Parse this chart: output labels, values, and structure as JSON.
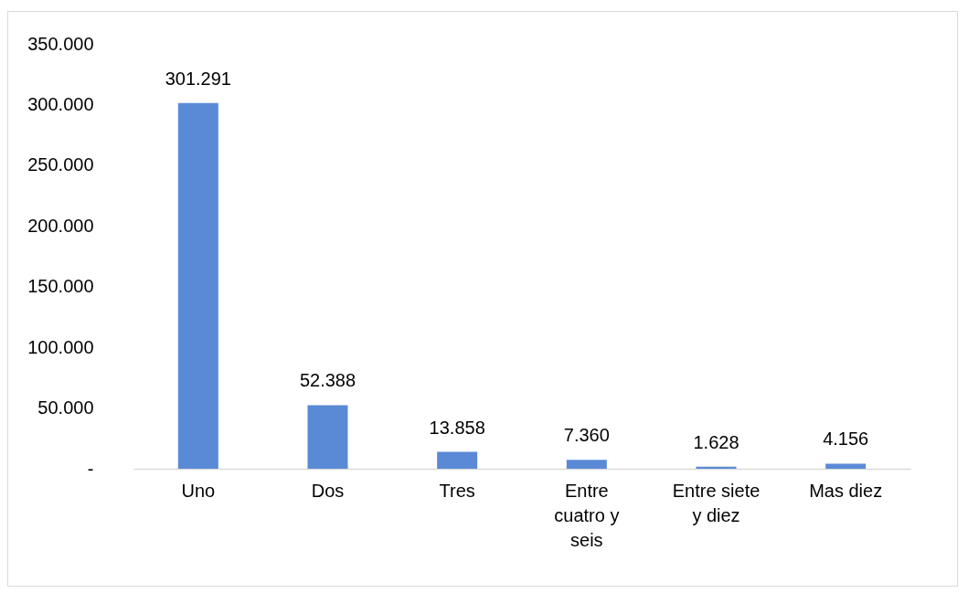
{
  "chart_data": {
    "type": "bar",
    "categories": [
      "Uno",
      "Dos",
      "Tres",
      "Entre cuatro y seis",
      "Entre siete y diez",
      "Mas diez"
    ],
    "values": [
      301291,
      52388,
      13858,
      7360,
      1628,
      4156
    ],
    "value_labels": [
      "301.291",
      "52.388",
      "13.858",
      "7.360",
      "1.628",
      "4.156"
    ],
    "color": "#5a8ad6",
    "ylim": [
      0,
      350000
    ],
    "yticks": [
      {
        "value": 0,
        "label": "-"
      },
      {
        "value": 50000,
        "label": "50.000"
      },
      {
        "value": 100000,
        "label": "100.000"
      },
      {
        "value": 150000,
        "label": "150.000"
      },
      {
        "value": 200000,
        "label": "200.000"
      },
      {
        "value": 250000,
        "label": "250.000"
      },
      {
        "value": 300000,
        "label": "300.000"
      },
      {
        "value": 350000,
        "label": "350.000"
      }
    ],
    "grid": false
  }
}
